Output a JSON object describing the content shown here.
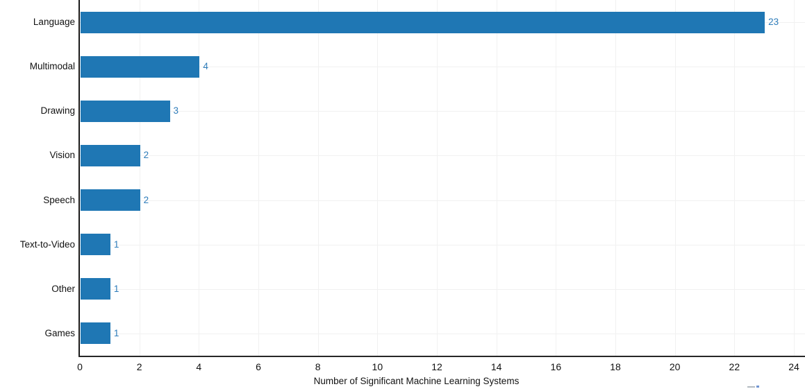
{
  "chart_data": {
    "type": "bar",
    "orientation": "horizontal",
    "categories": [
      "Language",
      "Multimodal",
      "Drawing",
      "Vision",
      "Speech",
      "Text-to-Video",
      "Other",
      "Games"
    ],
    "values": [
      23,
      4,
      3,
      2,
      2,
      1,
      1,
      1
    ],
    "value_labels": [
      "23",
      "4",
      "3",
      "2",
      "2",
      "1",
      "1",
      "1"
    ],
    "title": "",
    "xlabel": "Number of Significant Machine Learning Systems",
    "ylabel": "",
    "xlim": [
      0,
      24
    ],
    "xticks": [
      0,
      2,
      4,
      6,
      8,
      10,
      12,
      14,
      16,
      18,
      20,
      22,
      24
    ],
    "grid": true,
    "legend": "none",
    "colors": {
      "bar": "#1f77b4",
      "value_label": "#2e7cba",
      "gridline": "#f1f1f1",
      "spine": "#1a1a1a",
      "text": "#111111"
    }
  }
}
